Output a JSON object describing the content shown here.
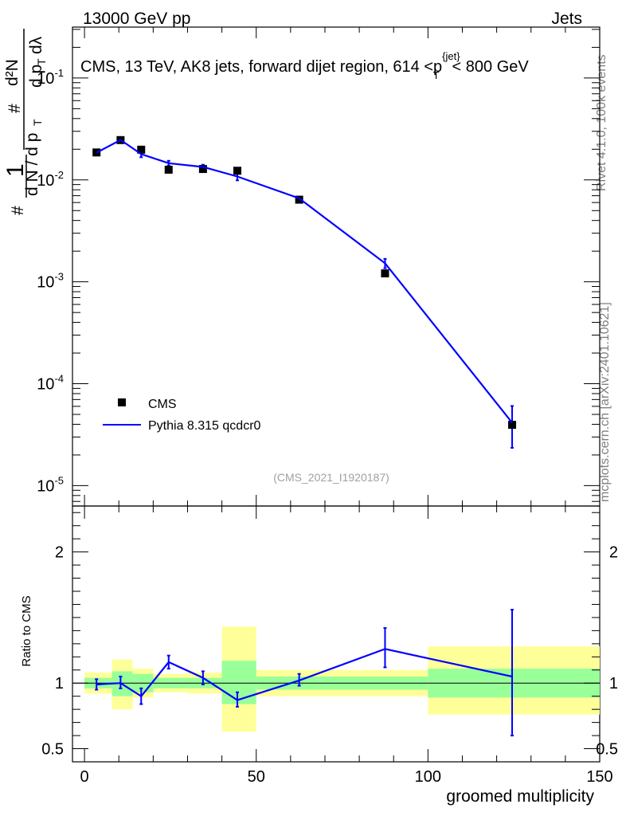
{
  "header": {
    "left": "13000 GeV pp",
    "right": "Jets"
  },
  "side_labels": {
    "rivet": "Rivet 4.1.0,  100k events",
    "mcplots": "mcplots.cern.ch [arXiv:2401.10621]"
  },
  "colors": {
    "data": "#000000",
    "mc": "#0000ff",
    "band_inner": "#99ff99",
    "band_outer": "#ffff99"
  },
  "chart_data": [
    {
      "type": "line",
      "title": "CMS, 13 TeV, AK8 jets, forward dijet region, 614 <p_T^{jet}< 800 GeV",
      "ylabel": "1/dN/dp_T  d²N/dp_T dλ",
      "xlabel": "",
      "yscale": "log",
      "ylim": [
        6.31e-06,
        0.316
      ],
      "xlim": [
        -3.5,
        150
      ],
      "ytick_labels": [
        "10^{-5}",
        "10^{-4}",
        "10^{-3}",
        "10^{-2}",
        "10^{-1}"
      ],
      "watermark": "(CMS_2021_I1920187)",
      "legend": {
        "placement": "bottom-left",
        "entries": [
          "CMS",
          "Pythia 8.315 qcdcr0"
        ]
      },
      "series": [
        {
          "name": "CMS",
          "kind": "markers",
          "x": [
            3.5,
            10.5,
            16.5,
            24.5,
            34.5,
            44.5,
            62.5,
            87.5,
            124.5
          ],
          "y": [
            0.0186,
            0.0246,
            0.0198,
            0.0126,
            0.0128,
            0.0123,
            0.0064,
            0.00121,
            3.95e-05
          ]
        },
        {
          "name": "Pythia 8.315 qcdcr0",
          "kind": "line",
          "x": [
            3.5,
            10.5,
            16.5,
            24.5,
            34.5,
            44.5,
            62.5,
            87.5,
            124.5
          ],
          "y": [
            0.0185,
            0.0247,
            0.0179,
            0.0146,
            0.0134,
            0.0108,
            0.0066,
            0.00152,
            4.15e-05
          ],
          "err_low": [
            0.0183,
            0.0243,
            0.0167,
            0.0138,
            0.0127,
            0.0099,
            0.0064,
            0.00136,
            2.35e-05
          ],
          "err_high": [
            0.0187,
            0.0251,
            0.0191,
            0.0154,
            0.0141,
            0.0117,
            0.0068,
            0.00168,
            6.05e-05
          ]
        }
      ]
    },
    {
      "type": "line",
      "title": "",
      "ylabel": "Ratio to CMS",
      "xlabel": "groomed multiplicity",
      "ylim": [
        0.4,
        2.35
      ],
      "xlim": [
        -3.5,
        150
      ],
      "ytick_labels": [
        "0.5",
        "1",
        "2"
      ],
      "xtick_labels": [
        "0",
        "50",
        "100",
        "150"
      ],
      "bins": [
        {
          "x0": 0,
          "x1": 8,
          "inner": [
            0.96,
            1.04
          ],
          "outer": [
            0.92,
            1.08
          ]
        },
        {
          "x0": 8,
          "x1": 14,
          "inner": [
            0.9,
            1.09
          ],
          "outer": [
            0.8,
            1.18
          ]
        },
        {
          "x0": 14,
          "x1": 20,
          "inner": [
            0.93,
            1.07
          ],
          "outer": [
            0.89,
            1.11
          ]
        },
        {
          "x0": 20,
          "x1": 30,
          "inner": [
            0.96,
            1.04
          ],
          "outer": [
            0.93,
            1.07
          ]
        },
        {
          "x0": 30,
          "x1": 40,
          "inner": [
            0.96,
            1.04
          ],
          "outer": [
            0.92,
            1.08
          ]
        },
        {
          "x0": 40,
          "x1": 50,
          "inner": [
            0.84,
            1.17
          ],
          "outer": [
            0.63,
            1.43
          ]
        },
        {
          "x0": 50,
          "x1": 100,
          "inner": [
            0.95,
            1.05
          ],
          "outer": [
            0.9,
            1.1
          ]
        },
        {
          "x0": 100,
          "x1": 150,
          "inner": [
            0.89,
            1.11
          ],
          "outer": [
            0.76,
            1.28
          ]
        }
      ],
      "series": [
        {
          "name": "Pythia 8.315 qcdcr0 / CMS",
          "x": [
            3.5,
            10.5,
            16.5,
            24.5,
            34.5,
            44.5,
            62.5,
            87.5,
            124.5
          ],
          "y": [
            0.99,
            1.0,
            0.9,
            1.16,
            1.04,
            0.87,
            1.02,
            1.26,
            1.05
          ],
          "err_low": [
            0.95,
            0.96,
            0.84,
            1.11,
            0.99,
            0.82,
            0.98,
            1.12,
            0.6
          ],
          "err_high": [
            1.03,
            1.05,
            0.96,
            1.21,
            1.09,
            0.93,
            1.07,
            1.42,
            1.56
          ]
        }
      ]
    }
  ]
}
